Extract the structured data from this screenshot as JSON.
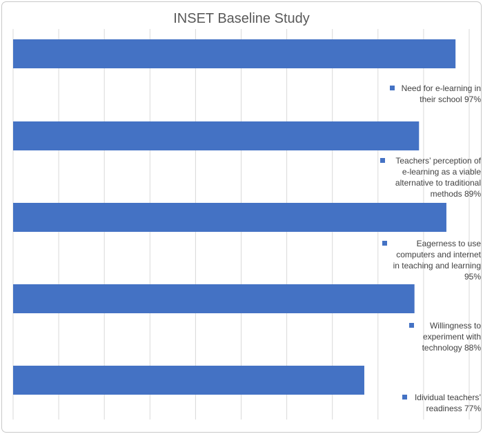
{
  "chart_data": {
    "type": "bar",
    "orientation": "horizontal",
    "title": "INSET Baseline Study",
    "categories": [
      "Need for e-learning in their school",
      "Teachers' perception of e-learning as a viable alternative to traditional methods",
      "Eagerness to use computers and internet in teaching and learning",
      "Willingness to experiment with technology",
      "Idividual teachers' readiness"
    ],
    "values": [
      97,
      89,
      95,
      88,
      77
    ],
    "data_labels": [
      "Need for e-learning in their school 97%",
      "Teachers' perception of e-learning as a viable alternative to traditional methods 89%",
      "Eagerness to use computers and internet in teaching and learning 95%",
      "Willingness to experiment with technology  88%",
      "Idividual teachers' readiness  77%"
    ],
    "xlim": [
      0,
      100
    ],
    "grid": true,
    "bar_color": "#4472c4"
  }
}
